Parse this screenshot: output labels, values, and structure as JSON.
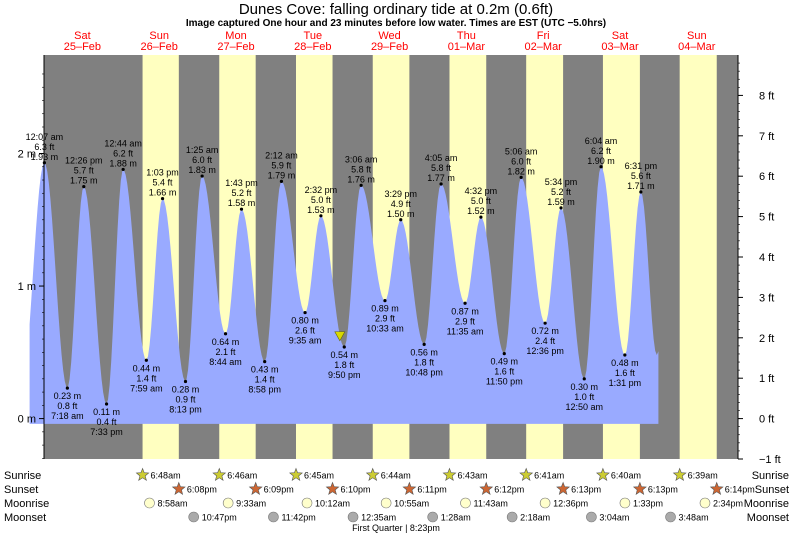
{
  "title": "Dunes Cove: falling  ordinary tide at 0.2m (0.6ft)",
  "subtitle": "Image captured One hour and 23 minutes before low water. Times are EST (UTC −5.0hrs)",
  "colors": {
    "night": "#808080",
    "day": "#ffffc0",
    "water": "#99aaff",
    "sunrise_star": "#cccc33",
    "sunset_star": "#cc6633",
    "moonrise": "#ffffcc",
    "moonset": "#aaaaaa"
  },
  "days": [
    {
      "dow": "Sat",
      "date": "25–Feb"
    },
    {
      "dow": "Sun",
      "date": "26–Feb"
    },
    {
      "dow": "Mon",
      "date": "27–Feb"
    },
    {
      "dow": "Tue",
      "date": "28–Feb"
    },
    {
      "dow": "Wed",
      "date": "29–Feb"
    },
    {
      "dow": "Thu",
      "date": "01–Mar"
    },
    {
      "dow": "Fri",
      "date": "02–Mar"
    },
    {
      "dow": "Sat",
      "date": "03–Mar"
    },
    {
      "dow": "Sun",
      "date": "04–Mar"
    }
  ],
  "chart_data": {
    "type": "area",
    "title": "Dunes Cove: falling  ordinary tide at 0.2m (0.6ft)",
    "left_axis": {
      "unit": "m",
      "ticks": [
        {
          "v": 0,
          "label": "0 m"
        },
        {
          "v": 1,
          "label": "1 m"
        },
        {
          "v": 2,
          "label": "2 m"
        }
      ]
    },
    "right_axis": {
      "unit": "ft",
      "ticks": [
        "−1 ft",
        "0 ft",
        "1 ft",
        "2 ft",
        "3 ft",
        "4 ft",
        "5 ft",
        "6 ft",
        "7 ft",
        "8 ft"
      ]
    },
    "ylim_m": [
      -0.3048,
      2.7432
    ],
    "x_range_hours": [
      0,
      216
    ],
    "tides": [
      {
        "h": 0.117,
        "time": "12:07 am",
        "ft": "6.3 ft",
        "m": "1.93 m",
        "type": "high"
      },
      {
        "h": 7.3,
        "time": "7:18 am",
        "ft": "0.8 ft",
        "m": "0.23 m",
        "type": "low"
      },
      {
        "h": 12.433,
        "time": "12:26 pm",
        "ft": "5.7 ft",
        "m": "1.75 m",
        "type": "high"
      },
      {
        "h": 19.55,
        "time": "7:33 pm",
        "ft": "0.4 ft",
        "m": "0.11 m",
        "type": "low"
      },
      {
        "h": 24.733,
        "time": "12:44 am",
        "ft": "6.2 ft",
        "m": "1.88 m",
        "type": "high"
      },
      {
        "h": 31.983,
        "time": "7:59 am",
        "ft": "1.4 ft",
        "m": "0.44 m",
        "type": "low"
      },
      {
        "h": 37.05,
        "time": "1:03 pm",
        "ft": "5.4 ft",
        "m": "1.66 m",
        "type": "high"
      },
      {
        "h": 44.217,
        "time": "8:13 pm",
        "ft": "0.9 ft",
        "m": "0.28 m",
        "type": "low"
      },
      {
        "h": 49.417,
        "time": "1:25 am",
        "ft": "6.0 ft",
        "m": "1.83 m",
        "type": "high"
      },
      {
        "h": 56.733,
        "time": "8:44 am",
        "ft": "2.1 ft",
        "m": "0.64 m",
        "type": "low"
      },
      {
        "h": 61.717,
        "time": "1:43 pm",
        "ft": "5.2 ft",
        "m": "1.58 m",
        "type": "high"
      },
      {
        "h": 68.967,
        "time": "8:58 pm",
        "ft": "1.4 ft",
        "m": "0.43 m",
        "type": "low"
      },
      {
        "h": 74.2,
        "time": "2:12 am",
        "ft": "5.9 ft",
        "m": "1.79 m",
        "type": "high"
      },
      {
        "h": 81.583,
        "time": "9:35 am",
        "ft": "2.6 ft",
        "m": "0.80 m",
        "type": "low"
      },
      {
        "h": 86.533,
        "time": "2:32 pm",
        "ft": "5.0 ft",
        "m": "1.53 m",
        "type": "high"
      },
      {
        "h": 93.833,
        "time": "9:50 pm",
        "ft": "1.8 ft",
        "m": "0.54 m",
        "type": "low"
      },
      {
        "h": 99.1,
        "time": "3:06 am",
        "ft": "5.8 ft",
        "m": "1.76 m",
        "type": "high"
      },
      {
        "h": 106.55,
        "time": "10:33 am",
        "ft": "2.9 ft",
        "m": "0.89 m",
        "type": "low"
      },
      {
        "h": 111.483,
        "time": "3:29 pm",
        "ft": "4.9 ft",
        "m": "1.50 m",
        "type": "high"
      },
      {
        "h": 118.8,
        "time": "10:48 pm",
        "ft": "1.8 ft",
        "m": "0.56 m",
        "type": "low"
      },
      {
        "h": 124.083,
        "time": "4:05 am",
        "ft": "5.8 ft",
        "m": "1.77 m",
        "type": "high"
      },
      {
        "h": 131.583,
        "time": "11:35 am",
        "ft": "2.9 ft",
        "m": "0.87 m",
        "type": "low"
      },
      {
        "h": 136.533,
        "time": "4:32 pm",
        "ft": "5.0 ft",
        "m": "1.52 m",
        "type": "high"
      },
      {
        "h": 143.833,
        "time": "11:50 pm",
        "ft": "1.6 ft",
        "m": "0.49 m",
        "type": "low"
      },
      {
        "h": 149.1,
        "time": "5:06 am",
        "ft": "6.0 ft",
        "m": "1.82 m",
        "type": "high"
      },
      {
        "h": 156.6,
        "time": "12:36 pm",
        "ft": "2.4 ft",
        "m": "0.72 m",
        "type": "low"
      },
      {
        "h": 161.567,
        "time": "5:34 pm",
        "ft": "5.2 ft",
        "m": "1.59 m",
        "type": "high"
      },
      {
        "h": 168.833,
        "time": "12:50 am",
        "ft": "1.0 ft",
        "m": "0.30 m",
        "type": "low"
      },
      {
        "h": 174.067,
        "time": "6:04 am",
        "ft": "6.2 ft",
        "m": "1.90 m",
        "type": "high"
      },
      {
        "h": 181.517,
        "time": "1:31 pm",
        "ft": "1.6 ft",
        "m": "0.48 m",
        "type": "low"
      },
      {
        "h": 186.517,
        "time": "6:31 pm",
        "ft": "5.6 ft",
        "m": "1.71 m",
        "type": "high"
      }
    ],
    "current_hour": 92.45,
    "sunrise": [
      {
        "h": 30.8,
        "label": "6:48am"
      },
      {
        "h": 54.767,
        "label": "6:46am"
      },
      {
        "h": 78.75,
        "label": "6:45am"
      },
      {
        "h": 102.733,
        "label": "6:44am"
      },
      {
        "h": 126.717,
        "label": "6:43am"
      },
      {
        "h": 150.683,
        "label": "6:41am"
      },
      {
        "h": 174.667,
        "label": "6:40am"
      },
      {
        "h": 198.65,
        "label": "6:39am"
      }
    ],
    "sunset": [
      {
        "h": 42.133,
        "label": "6:08pm"
      },
      {
        "h": 66.15,
        "label": "6:09pm"
      },
      {
        "h": 90.167,
        "label": "6:10pm"
      },
      {
        "h": 114.183,
        "label": "6:11pm"
      },
      {
        "h": 138.2,
        "label": "6:12pm"
      },
      {
        "h": 162.217,
        "label": "6:13pm"
      },
      {
        "h": 186.217,
        "label": "6:13pm"
      },
      {
        "h": 210.233,
        "label": "6:14pm"
      }
    ],
    "moonrise": [
      {
        "h": 32.967,
        "label": "8:58am"
      },
      {
        "h": 57.55,
        "label": "9:33am"
      },
      {
        "h": 82.2,
        "label": "10:12am"
      },
      {
        "h": 106.917,
        "label": "10:55am"
      },
      {
        "h": 131.717,
        "label": "11:43am"
      },
      {
        "h": 156.6,
        "label": "12:36pm"
      },
      {
        "h": 181.55,
        "label": "1:33pm"
      },
      {
        "h": 206.567,
        "label": "2:34pm"
      }
    ],
    "moonset": [
      {
        "h": 46.783,
        "label": "10:47pm"
      },
      {
        "h": 71.7,
        "label": "11:42pm"
      },
      {
        "h": 96.583,
        "label": "12:35am"
      },
      {
        "h": 121.467,
        "label": "1:28am"
      },
      {
        "h": 146.3,
        "label": "2:18am"
      },
      {
        "h": 171.067,
        "label": "3:04am"
      },
      {
        "h": 195.8,
        "label": "3:48am"
      }
    ],
    "moon_phase": "First Quarter | 8:23pm",
    "row_labels": {
      "sunrise": "Sunrise",
      "sunset": "Sunset",
      "moonrise": "Moonrise",
      "moonset": "Moonset"
    }
  }
}
